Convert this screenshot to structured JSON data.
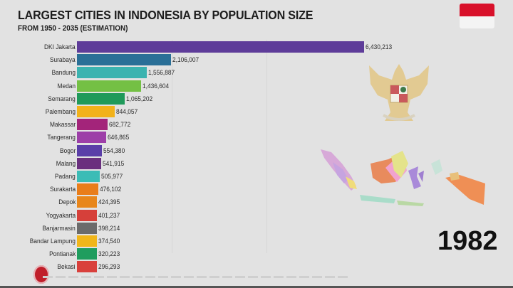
{
  "header": {
    "title": "LARGEST CITIES IN INDONESIA BY POPULATION SIZE",
    "subtitle": "FROM 1950 - 2035 (ESTIMATION)"
  },
  "year": "1982",
  "flag": {
    "top_color": "#d8102a",
    "bottom_color": "#f4f4f4"
  },
  "icons": {
    "flag": "indonesia-flag-icon",
    "emblem": "garuda-pancasila-emblem-icon",
    "map": "indonesia-map-icon",
    "logo": "channel-logo-icon"
  },
  "chart_data": {
    "type": "bar",
    "orientation": "horizontal",
    "title": "LARGEST CITIES IN INDONESIA BY POPULATION SIZE",
    "subtitle": "FROM 1950 - 2035 (ESTIMATION)",
    "year": "1982",
    "xlabel": "",
    "ylabel": "",
    "categories": [
      "DKI Jakarta",
      "Surabaya",
      "Bandung",
      "Medan",
      "Semarang",
      "Palembang",
      "Makassar",
      "Tangerang",
      "Bogor",
      "Malang",
      "Padang",
      "Surakarta",
      "Depok",
      "Yogyakarta",
      "Banjarmasin",
      "Bandar Lampung",
      "Pontianak",
      "Bekasi"
    ],
    "values": [
      6430213,
      2106007,
      1556887,
      1436604,
      1065202,
      844057,
      682772,
      646865,
      554380,
      541915,
      505977,
      476102,
      424395,
      401237,
      398214,
      374540,
      320223,
      296293
    ],
    "labels": [
      "6,430,213",
      "2,106,007",
      "1,556,887",
      "1,436,604",
      "1,065,202",
      "844,057",
      "682,772",
      "646,865",
      "554,380",
      "541,915",
      "505,977",
      "476,102",
      "424,395",
      "401,237",
      "398,214",
      "374,540",
      "320,223",
      "296,293"
    ],
    "colors": [
      "#5e3c99",
      "#2a6f97",
      "#3bb3b0",
      "#74c044",
      "#1f9a5a",
      "#f2b21b",
      "#a3247a",
      "#9d3fa8",
      "#5a3ea8",
      "#6a2f7e",
      "#3bbcb6",
      "#e97d1a",
      "#e8861b",
      "#d6403a",
      "#6b6b6b",
      "#f1b619",
      "#1f9d5e",
      "#d9403c"
    ],
    "xlim": [
      0,
      6430213
    ],
    "grid": true,
    "legend": "none"
  }
}
